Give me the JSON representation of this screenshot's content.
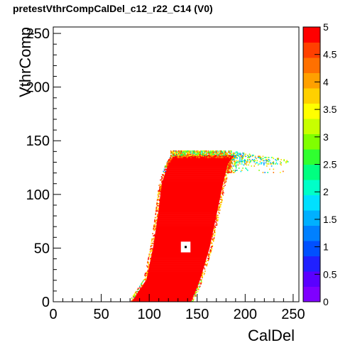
{
  "chart_data": {
    "type": "heatmap",
    "title": "pretestVthrCompCalDel_c12_r22_C14 (V0)",
    "xlabel": "CalDel",
    "ylabel": "VthrComp",
    "xlim": [
      0,
      256
    ],
    "ylim": [
      0,
      256
    ],
    "zlim": [
      0,
      5
    ],
    "x_ticks": [
      "0",
      "50",
      "100",
      "150",
      "200",
      "250"
    ],
    "y_ticks": [
      "0",
      "50",
      "100",
      "150",
      "200",
      "250"
    ],
    "colorbar_ticks": [
      "0",
      "0.5",
      "1",
      "1.5",
      "2",
      "2.5",
      "3",
      "3.5",
      "4",
      "4.5",
      "5"
    ],
    "grid": false,
    "colorbar": "right",
    "saturated_region": {
      "z": 5,
      "description_points": [
        {
          "vthr": 0,
          "caldel_left": 82,
          "caldel_right": 144
        },
        {
          "vthr": 20,
          "caldel_left": 97,
          "caldel_right": 153
        },
        {
          "vthr": 50,
          "caldel_left": 104,
          "caldel_right": 163
        },
        {
          "vthr": 80,
          "caldel_left": 109,
          "caldel_right": 170
        },
        {
          "vthr": 110,
          "caldel_left": 113,
          "caldel_right": 177
        },
        {
          "vthr": 128,
          "caldel_left": 120,
          "caldel_right": 182
        },
        {
          "vthr": 135,
          "caldel_left": 125,
          "caldel_right": 188
        }
      ],
      "plateau": {
        "vthr_top": 140,
        "caldel_start": 128,
        "caldel_end": 244
      },
      "hole": {
        "caldel": 138,
        "vthr": 51
      }
    }
  }
}
